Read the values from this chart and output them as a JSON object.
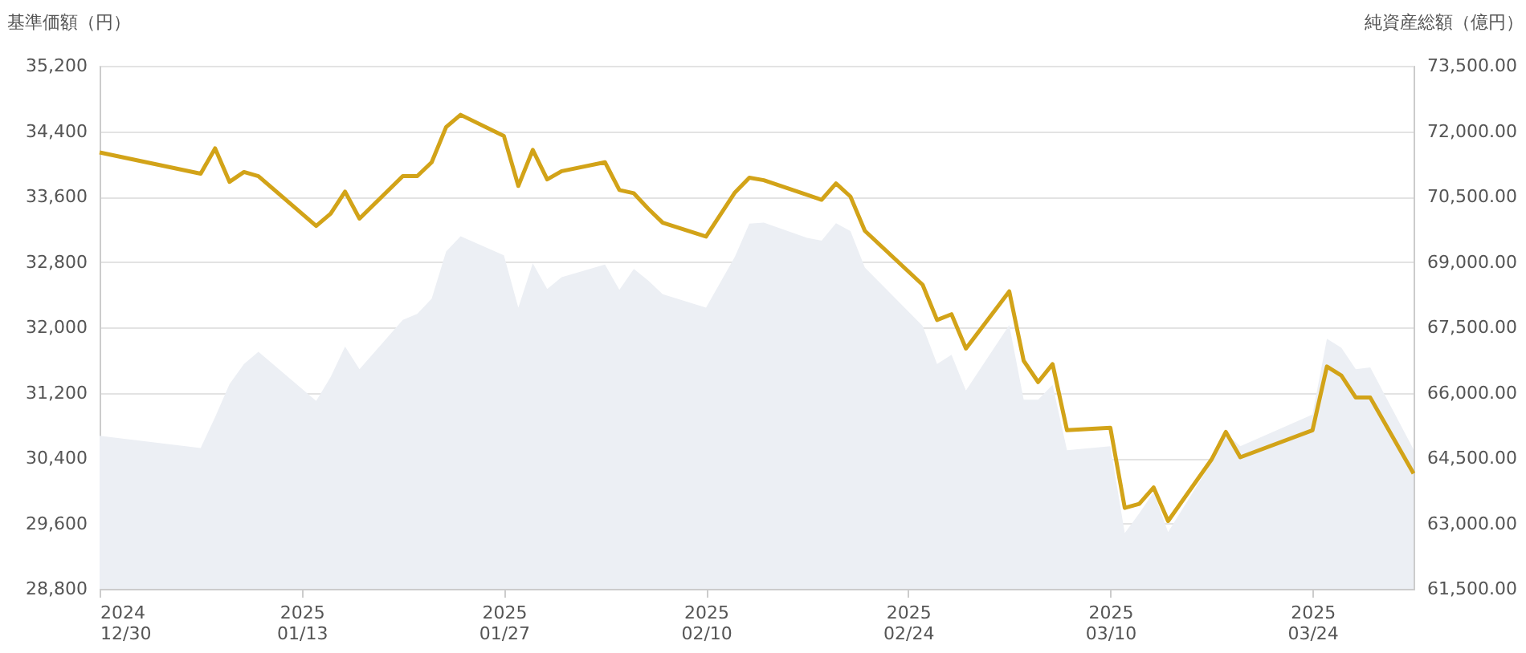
{
  "chart_data": {
    "type": "line",
    "ylabel": "基準価額（円）",
    "y2label": "純資産総額（億円）",
    "x": [
      "2024-12-30",
      "2025-01-06",
      "2025-01-07",
      "2025-01-08",
      "2025-01-09",
      "2025-01-10",
      "2025-01-14",
      "2025-01-15",
      "2025-01-16",
      "2025-01-17",
      "2025-01-20",
      "2025-01-21",
      "2025-01-22",
      "2025-01-23",
      "2025-01-24",
      "2025-01-27",
      "2025-01-28",
      "2025-01-29",
      "2025-01-30",
      "2025-01-31",
      "2025-02-03",
      "2025-02-04",
      "2025-02-05",
      "2025-02-06",
      "2025-02-07",
      "2025-02-10",
      "2025-02-12",
      "2025-02-13",
      "2025-02-14",
      "2025-02-17",
      "2025-02-18",
      "2025-02-19",
      "2025-02-20",
      "2025-02-21",
      "2025-02-25",
      "2025-02-26",
      "2025-02-27",
      "2025-02-28",
      "2025-03-03",
      "2025-03-04",
      "2025-03-05",
      "2025-03-06",
      "2025-03-07",
      "2025-03-10",
      "2025-03-11",
      "2025-03-12",
      "2025-03-13",
      "2025-03-14",
      "2025-03-17",
      "2025-03-18",
      "2025-03-19",
      "2025-03-24",
      "2025-03-25",
      "2025-03-26",
      "2025-03-27",
      "2025-03-28",
      "2025-03-31"
    ],
    "series": [
      {
        "type": "area",
        "axis": "y2",
        "color": "#eceff4",
        "values": [
          65010,
          64730,
          65440,
          66200,
          66660,
          66940,
          65810,
          66360,
          67060,
          66540,
          67670,
          67810,
          68160,
          69240,
          69590,
          69150,
          67950,
          68970,
          68380,
          68650,
          68940,
          68360,
          68840,
          68570,
          68260,
          67950,
          69120,
          69880,
          69900,
          69550,
          69490,
          69890,
          69710,
          68870,
          67530,
          66660,
          66870,
          66050,
          67550,
          65840,
          65840,
          66180,
          64680,
          64770,
          62780,
          63230,
          63720,
          62800,
          64400,
          65070,
          64770,
          65500,
          67240,
          67030,
          66540,
          66580,
          64700
        ]
      },
      {
        "axis": "y",
        "color": "#d2a318",
        "values": [
          34140,
          33880,
          34190,
          33780,
          33900,
          33850,
          33240,
          33390,
          33660,
          33330,
          33850,
          33850,
          34020,
          34450,
          34600,
          34340,
          33730,
          34170,
          33810,
          33910,
          34020,
          33680,
          33640,
          33450,
          33280,
          33110,
          33650,
          33830,
          33800,
          33620,
          33560,
          33760,
          33600,
          33180,
          32520,
          32090,
          32160,
          31740,
          32440,
          31590,
          31330,
          31550,
          30740,
          30770,
          29790,
          29840,
          30040,
          29630,
          30380,
          30720,
          30410,
          30740,
          31520,
          31410,
          31140,
          31140,
          30210
        ]
      }
    ],
    "xlim": [
      "2024-12-30",
      "2025-03-31"
    ],
    "xticks": [
      {
        "value": "2024-12-30",
        "label": "2024\n12/30"
      },
      {
        "value": "2025-01-13",
        "label": "2025\n01/13"
      },
      {
        "value": "2025-01-27",
        "label": "2025\n01/27"
      },
      {
        "value": "2025-02-10",
        "label": "2025\n02/10"
      },
      {
        "value": "2025-02-24",
        "label": "2025\n02/24"
      },
      {
        "value": "2025-03-10",
        "label": "2025\n03/10"
      },
      {
        "value": "2025-03-24",
        "label": "2025\n03/24"
      }
    ],
    "ylim": [
      28800,
      35200
    ],
    "yticks": [
      {
        "value": 28800,
        "label": "28,800"
      },
      {
        "value": 29600,
        "label": "29,600"
      },
      {
        "value": 30400,
        "label": "30,400"
      },
      {
        "value": 31200,
        "label": "31,200"
      },
      {
        "value": 32000,
        "label": "32,000"
      },
      {
        "value": 32800,
        "label": "32,800"
      },
      {
        "value": 33600,
        "label": "33,600"
      },
      {
        "value": 34400,
        "label": "34,400"
      },
      {
        "value": 35200,
        "label": "35,200"
      }
    ],
    "y2lim": [
      61500,
      73500
    ],
    "y2ticks": [
      {
        "value": 61500,
        "label": "61,500.00"
      },
      {
        "value": 63000,
        "label": "63,000.00"
      },
      {
        "value": 64500,
        "label": "64,500.00"
      },
      {
        "value": 66000,
        "label": "66,000.00"
      },
      {
        "value": 67500,
        "label": "67,500.00"
      },
      {
        "value": 69000,
        "label": "69,000.00"
      },
      {
        "value": 70500,
        "label": "70,500.00"
      },
      {
        "value": 72000,
        "label": "72,000.00"
      },
      {
        "value": 73500,
        "label": "73,500.00"
      }
    ],
    "grid": "y",
    "marker": "none",
    "line_style": "solid"
  }
}
